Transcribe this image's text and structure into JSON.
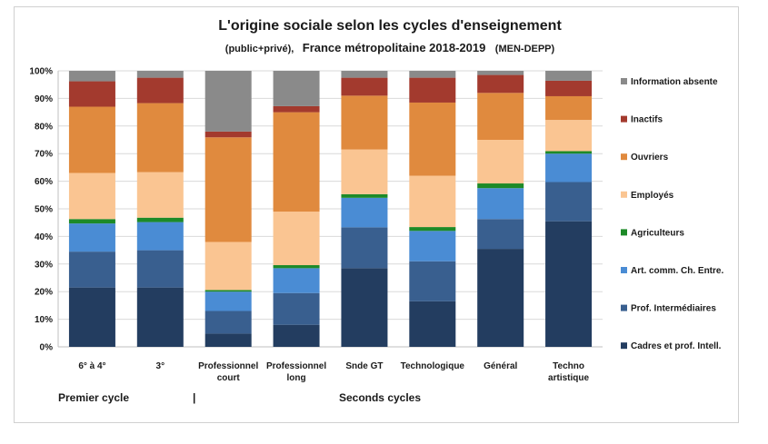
{
  "chart_data": {
    "type": "bar",
    "stacked": true,
    "title": "L'origine sociale selon les cycles d'enseignement",
    "subtitle_left": "(public+privé),",
    "subtitle_main": "France métropolitaine 2018-2019",
    "subtitle_right": "(MEN-DEPP)",
    "ylim": [
      0,
      100
    ],
    "yticks": [
      "0%",
      "10%",
      "20%",
      "30%",
      "40%",
      "50%",
      "60%",
      "70%",
      "80%",
      "90%",
      "100%"
    ],
    "grid": true,
    "legend_position": "right",
    "categories": [
      [
        "6° à 4°"
      ],
      [
        "3°"
      ],
      [
        "Professionnel",
        "court"
      ],
      [
        "Professionnel",
        "long"
      ],
      [
        "Snde GT"
      ],
      [
        "Technologique"
      ],
      [
        "Général"
      ],
      [
        "Techno",
        "artistique"
      ]
    ],
    "series": [
      {
        "name": "Cadres et prof. Intell.",
        "color": "#233d60",
        "values": [
          21.5,
          21.5,
          4.8,
          8.0,
          28.5,
          16.5,
          35.5,
          45.5
        ]
      },
      {
        "name": "Prof. Intermédiaires",
        "color": "#395f8f",
        "values": [
          13.0,
          13.5,
          8.2,
          11.5,
          14.8,
          14.5,
          10.8,
          14.2
        ]
      },
      {
        "name": "Art. comm. Ch. Entre.",
        "color": "#4a8cd4",
        "values": [
          10.2,
          10.2,
          7.0,
          9.0,
          10.7,
          11.0,
          11.2,
          10.3
        ]
      },
      {
        "name": "Agriculteurs",
        "color": "#1d8a28",
        "values": [
          1.6,
          1.6,
          0.6,
          1.1,
          1.3,
          1.4,
          1.7,
          0.9
        ]
      },
      {
        "name": "Employés",
        "color": "#fac592",
        "values": [
          16.7,
          16.5,
          17.4,
          19.4,
          16.2,
          18.6,
          15.8,
          11.3
        ]
      },
      {
        "name": "Ouvriers",
        "color": "#e08a3e",
        "values": [
          24.0,
          25.0,
          37.9,
          36.0,
          19.5,
          26.5,
          17.0,
          8.6
        ]
      },
      {
        "name": "Inactifs",
        "color": "#a33a2e",
        "values": [
          9.2,
          9.2,
          2.1,
          2.2,
          6.5,
          9.0,
          6.5,
          5.6
        ]
      },
      {
        "name": "Information absente",
        "color": "#8a8a8a",
        "values": [
          3.8,
          2.5,
          22.0,
          12.8,
          2.5,
          2.5,
          1.5,
          3.6
        ]
      }
    ],
    "groups": {
      "first_label": "Premier cycle",
      "separator": "|",
      "second_label": "Seconds cycles"
    }
  }
}
